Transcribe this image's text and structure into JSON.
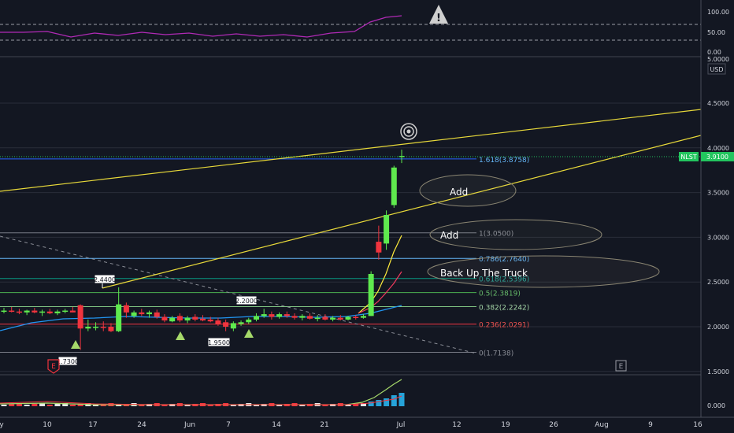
{
  "chart_data": {
    "type": "candlestick",
    "symbol": "NLST",
    "currency": "USD",
    "last_price": "3.9100",
    "price_axis_ticks": [
      "4.5000",
      "4.0000",
      "3.5000",
      "3.0000",
      "2.5000",
      "2.0000",
      "1.5000"
    ],
    "price_axis_top_partial": "5.0000",
    "rsi_axis_ticks": [
      "100.00",
      "50.00",
      "0.00"
    ],
    "volume_axis_tick": "0.000",
    "x_ticks": [
      "y",
      "10",
      "17",
      "24",
      "Jun",
      "7",
      "14",
      "21",
      "Jul",
      "12",
      "19",
      "26",
      "Aug",
      "9",
      "16"
    ],
    "candles": [
      {
        "o": 2.17,
        "h": 2.21,
        "l": 2.15,
        "c": 2.18
      },
      {
        "o": 2.18,
        "h": 2.22,
        "l": 2.16,
        "c": 2.17
      },
      {
        "o": 2.17,
        "h": 2.2,
        "l": 2.14,
        "c": 2.16
      },
      {
        "o": 2.16,
        "h": 2.19,
        "l": 2.13,
        "c": 2.18
      },
      {
        "o": 2.18,
        "h": 2.21,
        "l": 2.15,
        "c": 2.16
      },
      {
        "o": 2.16,
        "h": 2.19,
        "l": 2.12,
        "c": 2.17
      },
      {
        "o": 2.17,
        "h": 2.2,
        "l": 2.14,
        "c": 2.15
      },
      {
        "o": 2.15,
        "h": 2.19,
        "l": 2.13,
        "c": 2.17
      },
      {
        "o": 2.17,
        "h": 2.2,
        "l": 2.15,
        "c": 2.18
      },
      {
        "o": 2.18,
        "h": 2.22,
        "l": 2.16,
        "c": 2.16
      },
      {
        "o": 2.24,
        "h": 2.25,
        "l": 1.74,
        "c": 1.98
      },
      {
        "o": 1.98,
        "h": 2.08,
        "l": 1.95,
        "c": 2.0
      },
      {
        "o": 2.0,
        "h": 2.05,
        "l": 1.96,
        "c": 2.0
      },
      {
        "o": 2.0,
        "h": 2.06,
        "l": 1.95,
        "c": 1.99
      },
      {
        "o": 2.0,
        "h": 2.04,
        "l": 1.94,
        "c": 1.95
      },
      {
        "o": 1.95,
        "h": 2.44,
        "l": 1.94,
        "c": 2.25
      },
      {
        "o": 2.24,
        "h": 2.27,
        "l": 2.1,
        "c": 2.16
      },
      {
        "o": 2.12,
        "h": 2.18,
        "l": 2.1,
        "c": 2.16
      },
      {
        "o": 2.16,
        "h": 2.2,
        "l": 2.12,
        "c": 2.14
      },
      {
        "o": 2.14,
        "h": 2.18,
        "l": 2.1,
        "c": 2.16
      },
      {
        "o": 2.16,
        "h": 2.19,
        "l": 2.09,
        "c": 2.11
      },
      {
        "o": 2.11,
        "h": 2.14,
        "l": 2.05,
        "c": 2.07
      },
      {
        "o": 2.06,
        "h": 2.12,
        "l": 2.05,
        "c": 2.1
      },
      {
        "o": 2.12,
        "h": 2.15,
        "l": 2.05,
        "c": 2.07
      },
      {
        "o": 2.07,
        "h": 2.12,
        "l": 2.04,
        "c": 2.1
      },
      {
        "o": 2.11,
        "h": 2.14,
        "l": 2.06,
        "c": 2.08
      },
      {
        "o": 2.09,
        "h": 2.13,
        "l": 2.06,
        "c": 2.07
      },
      {
        "o": 2.08,
        "h": 2.11,
        "l": 2.05,
        "c": 2.06
      },
      {
        "o": 2.07,
        "h": 2.1,
        "l": 2.01,
        "c": 2.03
      },
      {
        "o": 2.05,
        "h": 2.08,
        "l": 1.95,
        "c": 2.0
      },
      {
        "o": 1.98,
        "h": 2.06,
        "l": 1.95,
        "c": 2.04
      },
      {
        "o": 2.03,
        "h": 2.07,
        "l": 2.01,
        "c": 2.05
      },
      {
        "o": 2.05,
        "h": 2.1,
        "l": 2.03,
        "c": 2.08
      },
      {
        "o": 2.08,
        "h": 2.15,
        "l": 2.06,
        "c": 2.12
      },
      {
        "o": 2.12,
        "h": 2.2,
        "l": 2.1,
        "c": 2.14
      },
      {
        "o": 2.14,
        "h": 2.17,
        "l": 2.08,
        "c": 2.11
      },
      {
        "o": 2.11,
        "h": 2.16,
        "l": 2.09,
        "c": 2.14
      },
      {
        "o": 2.14,
        "h": 2.17,
        "l": 2.1,
        "c": 2.12
      },
      {
        "o": 2.12,
        "h": 2.15,
        "l": 2.08,
        "c": 2.1
      },
      {
        "o": 2.1,
        "h": 2.14,
        "l": 2.07,
        "c": 2.12
      },
      {
        "o": 2.12,
        "h": 2.15,
        "l": 2.08,
        "c": 2.09
      },
      {
        "o": 2.09,
        "h": 2.13,
        "l": 2.06,
        "c": 2.1
      },
      {
        "o": 2.11,
        "h": 2.14,
        "l": 2.07,
        "c": 2.08
      },
      {
        "o": 2.08,
        "h": 2.12,
        "l": 2.06,
        "c": 2.1
      },
      {
        "o": 2.1,
        "h": 2.13,
        "l": 2.07,
        "c": 2.08
      },
      {
        "o": 2.08,
        "h": 2.12,
        "l": 2.07,
        "c": 2.11
      },
      {
        "o": 2.11,
        "h": 2.13,
        "l": 2.08,
        "c": 2.1
      },
      {
        "o": 2.1,
        "h": 2.14,
        "l": 2.09,
        "c": 2.12
      },
      {
        "o": 2.12,
        "h": 2.62,
        "l": 2.12,
        "c": 2.59
      },
      {
        "o": 2.95,
        "h": 3.13,
        "l": 2.75,
        "c": 2.83
      },
      {
        "o": 2.93,
        "h": 3.3,
        "l": 2.86,
        "c": 3.25
      },
      {
        "o": 3.36,
        "h": 3.8,
        "l": 3.33,
        "c": 3.78
      },
      {
        "o": 3.9,
        "h": 3.98,
        "l": 3.83,
        "c": 3.91
      }
    ],
    "fibonacci": [
      {
        "ratio": "1.618",
        "label": "1.618(3.8758)",
        "price": 3.8758,
        "color": "#2962ff",
        "text": "#64b5f6"
      },
      {
        "ratio": "1",
        "label": "1(3.0500)",
        "price": 3.05,
        "color": "#787b86",
        "text": "#8a8d96"
      },
      {
        "ratio": "0.786",
        "label": "0.786(2.7640)",
        "price": 2.764,
        "color": "#64b5f6",
        "text": "#64b5f6"
      },
      {
        "ratio": "0.618",
        "label": "0.618(2.5396)",
        "price": 2.5396,
        "color": "#089981",
        "text": "#26a69a"
      },
      {
        "ratio": "0.5",
        "label": "0.5(2.3819)",
        "price": 2.3819,
        "color": "#4caf50",
        "text": "#66bb6a"
      },
      {
        "ratio": "0.382",
        "label": "0.382(2.2242)",
        "price": 2.2242,
        "color": "#81c784",
        "text": "#a5d6a7"
      },
      {
        "ratio": "0.236",
        "label": "0.236(2.0291)",
        "price": 2.0291,
        "color": "#f23645",
        "text": "#ef5350"
      },
      {
        "ratio": "0",
        "label": "0(1.7138)",
        "price": 1.7138,
        "color": "#787b86",
        "text": "#8a8d96"
      }
    ],
    "price_callouts": [
      "2.4400",
      "2.2000",
      "1.9500",
      "1.7300"
    ],
    "annotations": [
      "Add",
      "Add",
      "Back Up The Truck"
    ],
    "earnings_marker": "E",
    "colors": {
      "up": "#5fea4e",
      "down": "#f0343e",
      "trend": "#e8d93a",
      "rsi": "#b02ab5",
      "ma_fast": "#ffeb3b",
      "ma_mid": "#ef3a5d",
      "ma_slow": "#2196f3",
      "volume": "#26a3d9",
      "last_price": "#22c55e"
    }
  }
}
